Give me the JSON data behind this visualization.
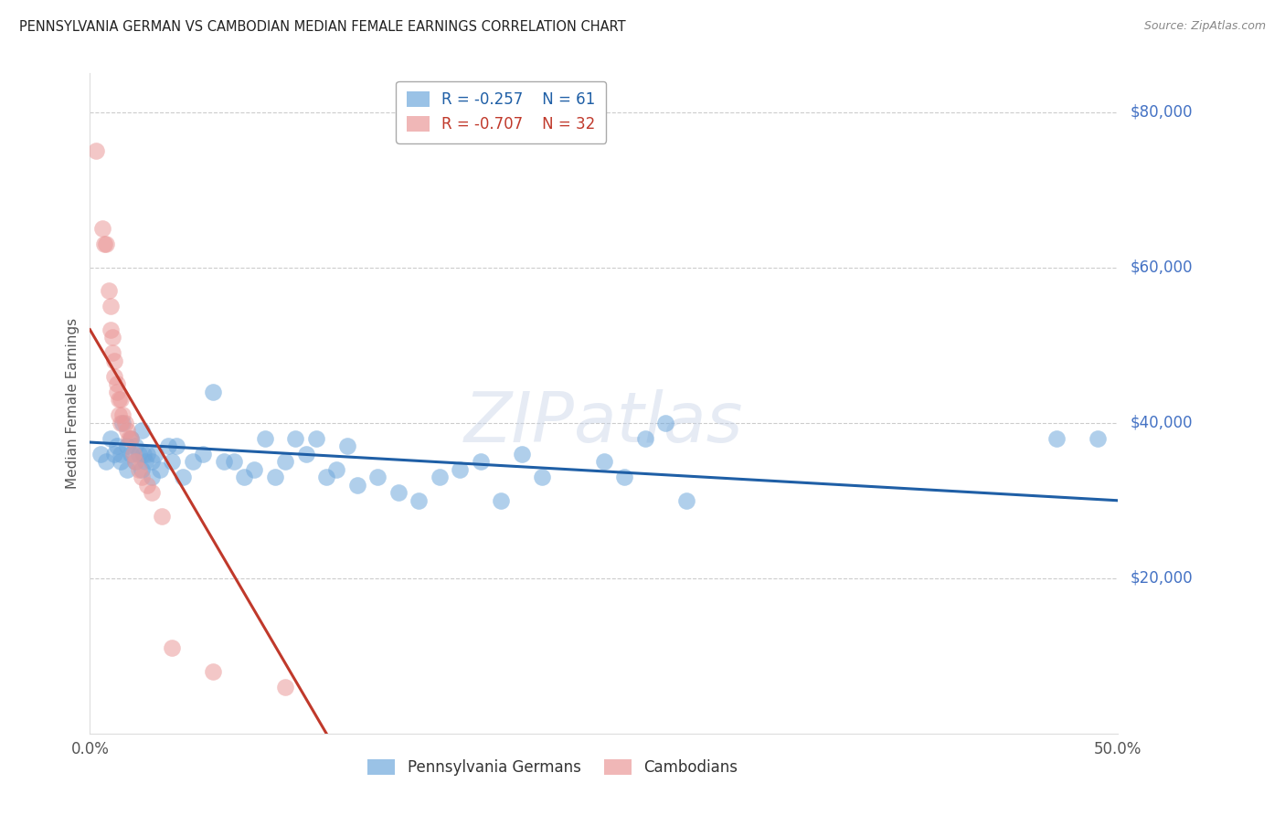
{
  "title": "PENNSYLVANIA GERMAN VS CAMBODIAN MEDIAN FEMALE EARNINGS CORRELATION CHART",
  "source": "Source: ZipAtlas.com",
  "ylabel_label": "Median Female Earnings",
  "x_min": 0.0,
  "x_max": 0.5,
  "y_min": 0,
  "y_max": 85000,
  "x_ticks": [
    0.0,
    0.1,
    0.2,
    0.3,
    0.4,
    0.5
  ],
  "x_tick_labels": [
    "0.0%",
    "",
    "",
    "",
    "",
    "50.0%"
  ],
  "y_ticks": [
    20000,
    40000,
    60000,
    80000
  ],
  "y_tick_labels": [
    "$20,000",
    "$40,000",
    "$60,000",
    "$80,000"
  ],
  "blue_color": "#6fa8dc",
  "pink_color": "#ea9999",
  "blue_line_color": "#1f5fa6",
  "pink_line_color": "#c0392b",
  "watermark": "ZIPatlas",
  "legend_blue_r": "R = -0.257",
  "legend_blue_n": "N = 61",
  "legend_pink_r": "R = -0.707",
  "legend_pink_n": "N = 32",
  "blue_scatter_x": [
    0.005,
    0.008,
    0.01,
    0.012,
    0.013,
    0.015,
    0.015,
    0.016,
    0.018,
    0.018,
    0.02,
    0.02,
    0.022,
    0.022,
    0.024,
    0.025,
    0.025,
    0.026,
    0.027,
    0.028,
    0.03,
    0.03,
    0.032,
    0.034,
    0.038,
    0.04,
    0.042,
    0.045,
    0.05,
    0.055,
    0.06,
    0.065,
    0.07,
    0.075,
    0.08,
    0.085,
    0.09,
    0.095,
    0.1,
    0.105,
    0.11,
    0.115,
    0.12,
    0.125,
    0.13,
    0.14,
    0.15,
    0.16,
    0.17,
    0.18,
    0.19,
    0.2,
    0.21,
    0.22,
    0.25,
    0.26,
    0.27,
    0.28,
    0.29,
    0.47,
    0.49
  ],
  "blue_scatter_y": [
    36000,
    35000,
    38000,
    36000,
    37000,
    36000,
    35000,
    40000,
    37000,
    34000,
    38000,
    36000,
    37000,
    35000,
    36000,
    39000,
    34000,
    36000,
    35000,
    36000,
    35000,
    33000,
    36000,
    34000,
    37000,
    35000,
    37000,
    33000,
    35000,
    36000,
    44000,
    35000,
    35000,
    33000,
    34000,
    38000,
    33000,
    35000,
    38000,
    36000,
    38000,
    33000,
    34000,
    37000,
    32000,
    33000,
    31000,
    30000,
    33000,
    34000,
    35000,
    30000,
    36000,
    33000,
    35000,
    33000,
    38000,
    40000,
    30000,
    38000,
    38000
  ],
  "pink_scatter_x": [
    0.003,
    0.006,
    0.007,
    0.008,
    0.009,
    0.01,
    0.01,
    0.011,
    0.011,
    0.012,
    0.012,
    0.013,
    0.013,
    0.014,
    0.014,
    0.015,
    0.015,
    0.016,
    0.017,
    0.018,
    0.019,
    0.02,
    0.021,
    0.022,
    0.024,
    0.025,
    0.028,
    0.03,
    0.035,
    0.04,
    0.06,
    0.095
  ],
  "pink_scatter_y": [
    75000,
    65000,
    63000,
    63000,
    57000,
    55000,
    52000,
    51000,
    49000,
    48000,
    46000,
    45000,
    44000,
    43000,
    41000,
    43000,
    40000,
    41000,
    40000,
    39000,
    38000,
    38000,
    36000,
    35000,
    34000,
    33000,
    32000,
    31000,
    28000,
    11000,
    8000,
    6000
  ],
  "blue_line_x0": 0.0,
  "blue_line_y0": 37500,
  "blue_line_x1": 0.5,
  "blue_line_y1": 30000,
  "pink_line_x0": 0.0,
  "pink_line_y0": 52000,
  "pink_line_x1": 0.115,
  "pink_line_y1": 0,
  "legend_blue_label": "Pennsylvania Germans",
  "legend_pink_label": "Cambodians"
}
